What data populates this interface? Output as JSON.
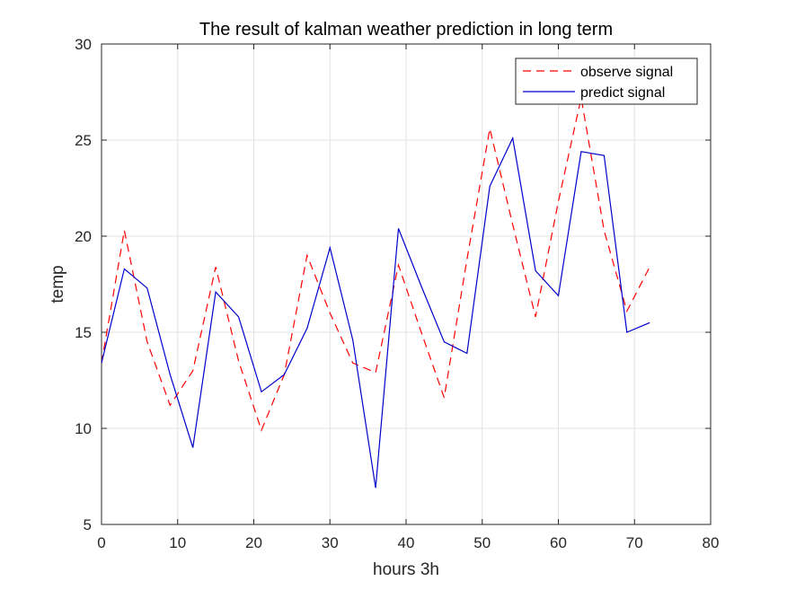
{
  "chart_data": {
    "type": "line",
    "title": "The result of kalman weather prediction in long term",
    "xlabel": "hours 3h",
    "ylabel": "temp",
    "xlim": [
      0,
      80
    ],
    "ylim": [
      5,
      30
    ],
    "xticks": [
      0,
      10,
      20,
      30,
      40,
      50,
      60,
      70,
      80
    ],
    "yticks": [
      5,
      10,
      15,
      20,
      25,
      30
    ],
    "grid": true,
    "legend_position": "top-right",
    "series": [
      {
        "name": "observe signal",
        "color": "#ff0000",
        "style": "dashed",
        "x": [
          0,
          3,
          6,
          9,
          12,
          15,
          18,
          21,
          24,
          27,
          30,
          33,
          36,
          39,
          42,
          45,
          48,
          51,
          54,
          57,
          60,
          63,
          66,
          69,
          72
        ],
        "y": [
          13.4,
          20.3,
          14.5,
          11.2,
          13.0,
          18.4,
          13.5,
          9.9,
          12.8,
          19.0,
          16.0,
          13.4,
          12.9,
          18.5,
          15.0,
          11.6,
          18.8,
          25.6,
          20.6,
          15.8,
          21.8,
          27.2,
          20.3,
          16.1,
          18.4
        ]
      },
      {
        "name": "predict signal",
        "color": "#0000cc",
        "style": "solid",
        "x": [
          0,
          3,
          6,
          9,
          12,
          15,
          18,
          21,
          24,
          27,
          30,
          33,
          36,
          39,
          42,
          45,
          48,
          51,
          54,
          57,
          60,
          63,
          66,
          69,
          72
        ],
        "y": [
          13.4,
          18.3,
          17.3,
          12.8,
          9.0,
          17.1,
          15.8,
          11.9,
          12.8,
          15.2,
          19.4,
          14.6,
          6.9,
          20.4,
          17.4,
          14.5,
          13.9,
          22.6,
          25.1,
          18.2,
          16.9,
          24.4,
          24.2,
          15.0,
          15.5
        ]
      }
    ]
  }
}
